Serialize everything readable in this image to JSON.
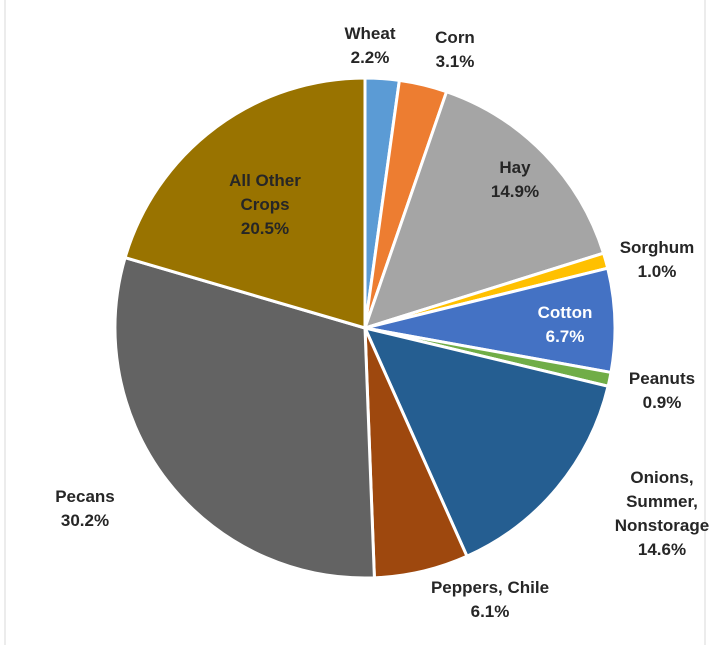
{
  "chart_data": {
    "type": "pie",
    "categories": [
      "Wheat",
      "Corn",
      "Hay",
      "Sorghum",
      "Cotton",
      "Peanuts",
      "Onions, Summer, Nonstorage",
      "Peppers, Chile",
      "Pecans",
      "All Other Crops"
    ],
    "values": [
      2.2,
      3.1,
      14.9,
      1.0,
      6.7,
      0.9,
      14.6,
      6.1,
      30.2,
      20.5
    ],
    "value_labels": [
      "2.2%",
      "3.1%",
      "14.9%",
      "1.0%",
      "6.7%",
      "0.9%",
      "14.6%",
      "6.1%",
      "30.2%",
      "20.5%"
    ],
    "colors": [
      "#5b9bd5",
      "#ed7d31",
      "#a5a5a5",
      "#ffc000",
      "#4472c4",
      "#70ad47",
      "#255e91",
      "#9e480e",
      "#636363",
      "#997300"
    ]
  }
}
